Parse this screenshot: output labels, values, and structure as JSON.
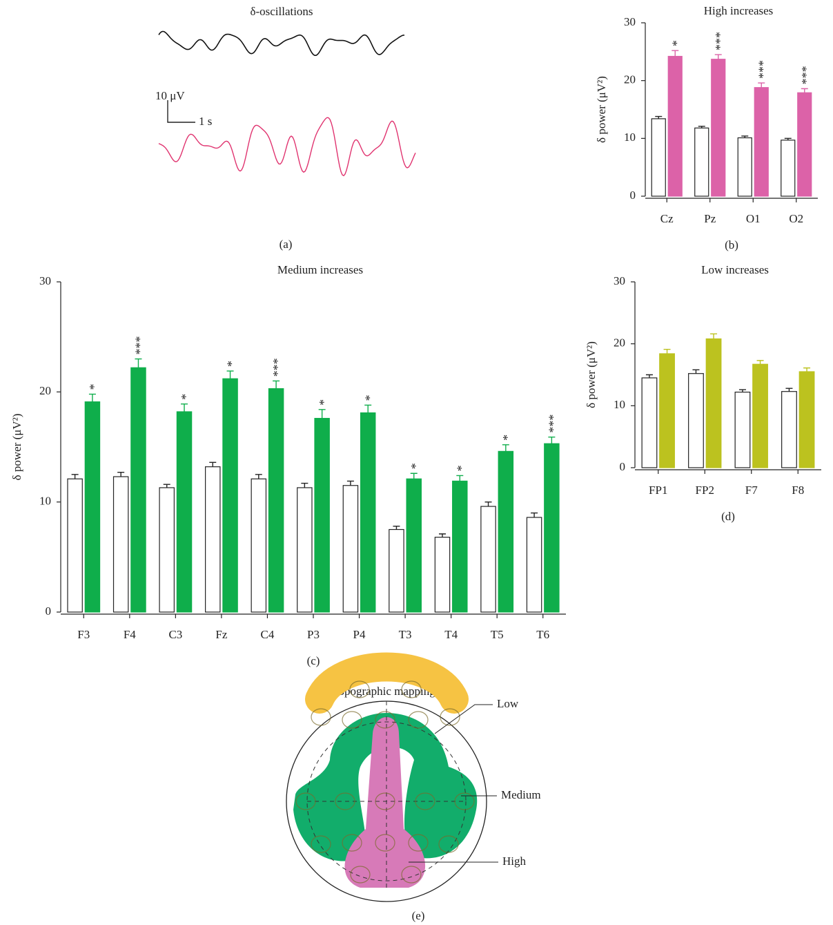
{
  "panel_a": {
    "title": "δ-oscillations",
    "scale_y": "10 μV",
    "scale_x": "1 s",
    "label": "(a)"
  },
  "chart_data": [
    {
      "type": "bar",
      "title": "High increases",
      "y_label": "δ power (μV²)",
      "label": "(b)",
      "categories": [
        "Cz",
        "Pz",
        "O1",
        "O2"
      ],
      "series": [
        {
          "color": "#ffffff",
          "values": [
            13.4,
            11.8,
            10.1,
            9.7
          ],
          "errors": [
            0.4,
            0.3,
            0.3,
            0.3
          ]
        },
        {
          "color": "#dc62a8",
          "values": [
            24.2,
            23.7,
            18.8,
            17.9
          ],
          "errors": [
            1.0,
            0.8,
            0.8,
            0.7
          ]
        }
      ],
      "annotations": [
        "*",
        "***",
        "***",
        "***"
      ],
      "ylim": [
        0,
        30
      ],
      "yticks": [
        0,
        10,
        20,
        30
      ]
    },
    {
      "type": "bar",
      "title": "Medium increases",
      "y_label": "δ power (μV²)",
      "label": "(c)",
      "categories": [
        "F3",
        "F4",
        "C3",
        "Fz",
        "C4",
        "P3",
        "P4",
        "T3",
        "T4",
        "T5",
        "T6"
      ],
      "series": [
        {
          "color": "#ffffff",
          "values": [
            12.1,
            12.3,
            11.3,
            13.2,
            12.1,
            11.3,
            11.5,
            7.5,
            6.8,
            9.6,
            8.6
          ],
          "errors": [
            0.4,
            0.4,
            0.3,
            0.4,
            0.4,
            0.4,
            0.4,
            0.3,
            0.3,
            0.4,
            0.4
          ]
        },
        {
          "color": "#0fae4b",
          "values": [
            19.1,
            22.2,
            18.2,
            21.2,
            20.3,
            17.6,
            18.1,
            12.1,
            11.9,
            14.6,
            15.3
          ],
          "errors": [
            0.7,
            0.8,
            0.7,
            0.7,
            0.7,
            0.8,
            0.7,
            0.5,
            0.5,
            0.6,
            0.6
          ]
        }
      ],
      "annotations": [
        "*",
        "***",
        "*",
        "*",
        "***",
        "*",
        "*",
        "*",
        "*",
        "*",
        "***"
      ],
      "ylim": [
        0,
        30
      ],
      "yticks": [
        0,
        10,
        20,
        30
      ]
    },
    {
      "type": "bar",
      "title": "Low increases",
      "y_label": "δ power (μV²)",
      "label": "(d)",
      "categories": [
        "FP1",
        "FP2",
        "F7",
        "F8"
      ],
      "series": [
        {
          "color": "#ffffff",
          "values": [
            14.5,
            15.2,
            12.2,
            12.3
          ],
          "errors": [
            0.5,
            0.6,
            0.4,
            0.5
          ]
        },
        {
          "color": "#bcc21f",
          "values": [
            18.4,
            20.8,
            16.7,
            15.5
          ],
          "errors": [
            0.7,
            0.8,
            0.6,
            0.6
          ]
        }
      ],
      "annotations": [
        null,
        null,
        null,
        null
      ],
      "ylim": [
        0,
        30
      ],
      "yticks": [
        0,
        10,
        20,
        30
      ]
    }
  ],
  "panel_e": {
    "title": "Topographic mapping",
    "labels": [
      "Low",
      "Medium",
      "High"
    ],
    "label": "(e)"
  }
}
